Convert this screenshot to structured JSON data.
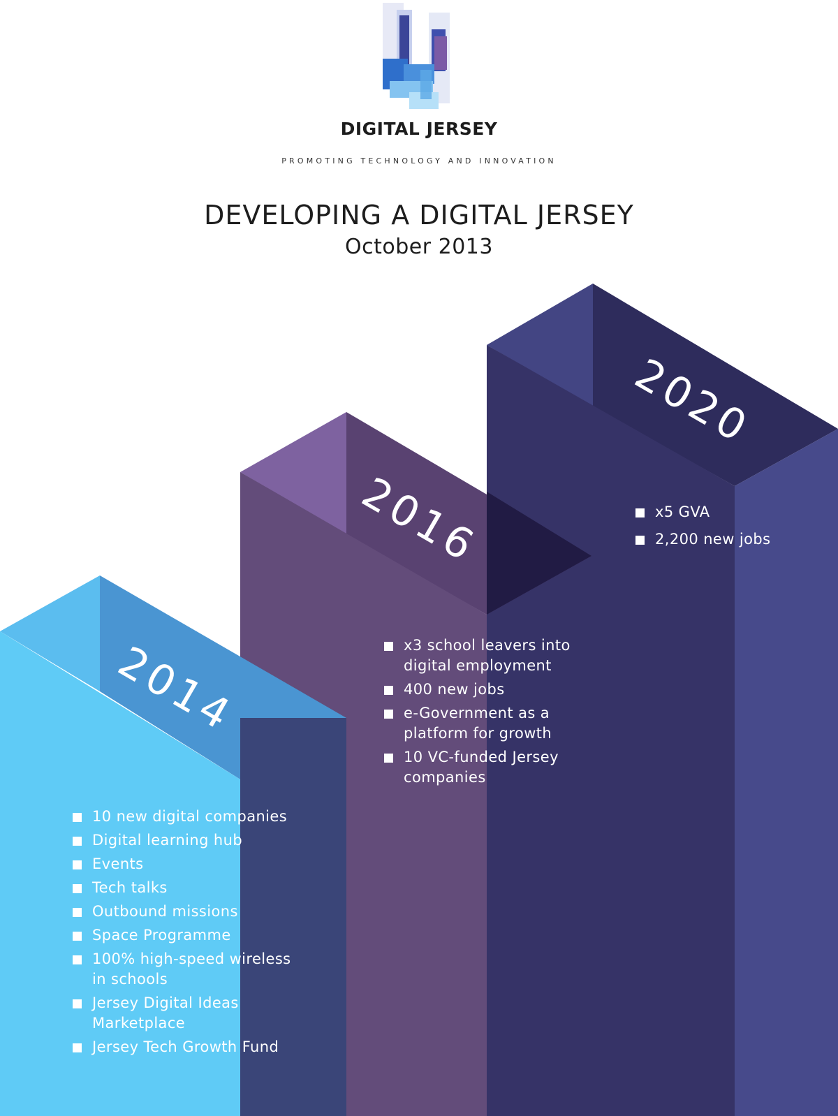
{
  "header": {
    "brand": "DIGITAL JERSEY",
    "tagline": "PROMOTING TECHNOLOGY AND INNOVATION",
    "logo_icon": "digital-jersey-logo-icon"
  },
  "title": {
    "headline": "DEVELOPING A DIGITAL JERSEY",
    "date": "October 2013"
  },
  "colors": {
    "sky": "#5ecbf5",
    "sky_top": "#4c97d3",
    "purple": "#634c7a",
    "purple_top": "#7e62a0",
    "navy": "#363367",
    "navy_top": "#2e2c5c",
    "indigo_side": "#474a8b"
  },
  "milestones": [
    {
      "year": "2014",
      "items": [
        "10 new digital companies",
        "Digital learning hub",
        "Events",
        "Tech talks",
        "Outbound missions",
        "Space Programme",
        "100% high-speed wireless in schools",
        "Jersey Digital Ideas Marketplace",
        "Jersey Tech Growth Fund"
      ]
    },
    {
      "year": "2016",
      "items": [
        "x3 school leavers into digital employment",
        "400 new jobs",
        "e-Government as a platform for growth",
        "10 VC-funded Jersey companies"
      ]
    },
    {
      "year": "2020",
      "items": [
        "x5 GVA",
        "2,200 new jobs"
      ]
    }
  ]
}
